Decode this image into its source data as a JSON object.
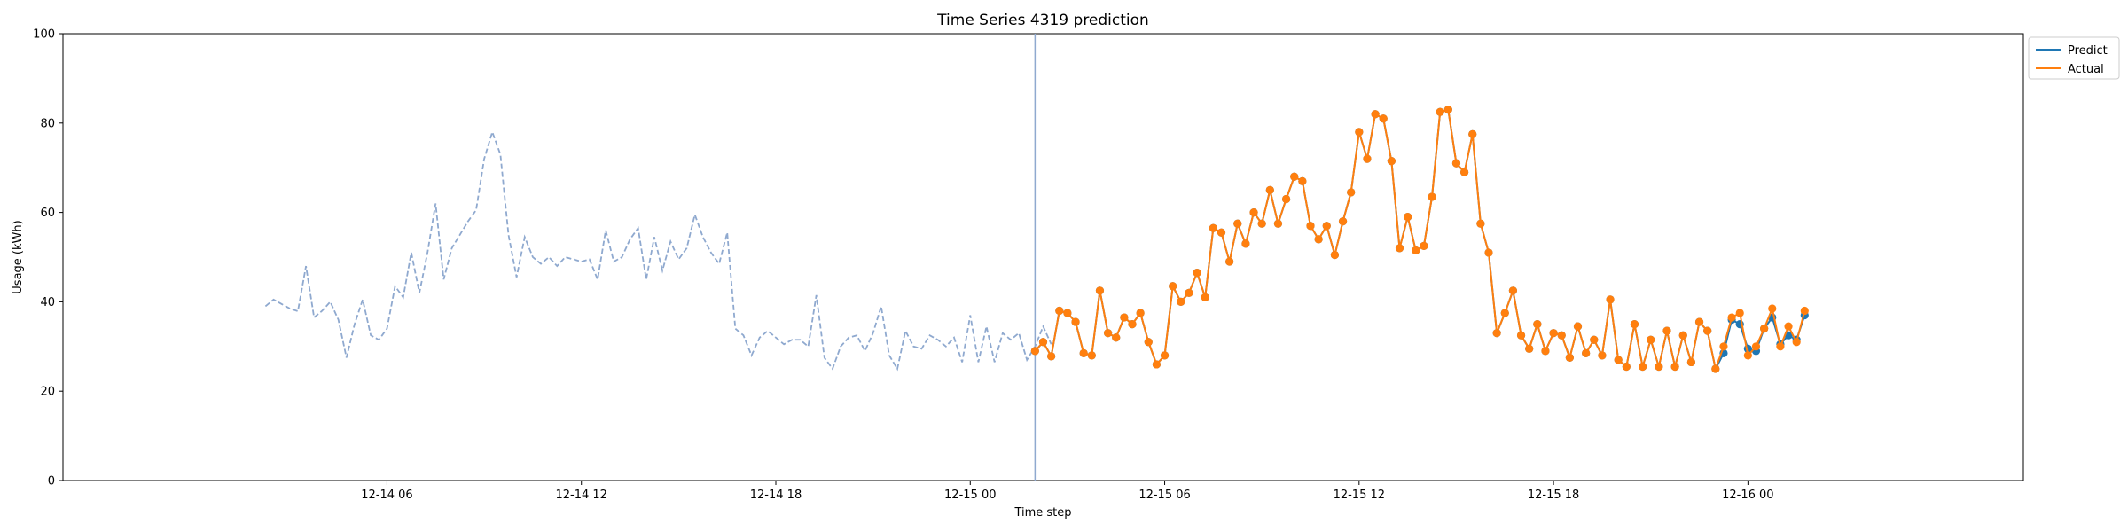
{
  "chart_data": {
    "type": "line",
    "title": "Time Series 4319 prediction",
    "xlabel": "Time step",
    "ylabel": "Usage (kWh)",
    "ylim": [
      0,
      100
    ],
    "yticks": [
      0,
      20,
      40,
      60,
      80,
      100
    ],
    "x_unit": "hours",
    "xlim": [
      -4,
      56.5
    ],
    "xticks": [
      {
        "x": 6,
        "label": "12-14 06"
      },
      {
        "x": 12,
        "label": "12-14 12"
      },
      {
        "x": 18,
        "label": "12-14 18"
      },
      {
        "x": 24,
        "label": "12-15 00"
      },
      {
        "x": 30,
        "label": "12-15 06"
      },
      {
        "x": 36,
        "label": "12-15 12"
      },
      {
        "x": 42,
        "label": "12-15 18"
      },
      {
        "x": 48,
        "label": "12-16 00"
      }
    ],
    "forecast_start": 26,
    "legend": {
      "placement": "outside-right-top"
    },
    "colors": {
      "history": "#8fa9cf",
      "predict": "#1f77b4",
      "actual": "#ff7f0e",
      "forecast_line": "#8fa9cf"
    },
    "history": {
      "x_start": 2.25,
      "x_step": 0.25,
      "values": [
        39.0,
        40.5,
        39.5,
        38.5,
        37.9,
        48.0,
        36.5,
        38.0,
        40.0,
        36.0,
        27.5,
        35.0,
        40.5,
        32.5,
        31.5,
        34.0,
        43.5,
        41.0,
        51.0,
        42.0,
        51.0,
        62.0,
        45.0,
        52.0,
        55.0,
        58.0,
        60.5,
        72.0,
        78.0,
        73.0,
        55.0,
        45.5,
        54.5,
        50.0,
        48.5,
        50.0,
        48.0,
        50.0,
        49.5,
        49.0,
        49.5,
        45.0,
        56.0,
        49.0,
        50.0,
        54.0,
        56.5,
        45.0,
        54.5,
        47.0,
        53.5,
        49.5,
        52.0,
        59.5,
        54.5,
        51.0,
        48.5,
        55.5,
        34.0,
        32.5,
        28.0,
        32.0,
        33.5,
        32.0,
        30.5,
        31.5,
        31.5,
        30.0,
        41.5,
        27.5,
        25.0,
        30.0,
        32.0,
        32.5,
        29.0,
        33.0,
        39.0,
        28.0,
        25.0,
        33.5,
        30.0,
        29.5,
        32.5,
        31.5,
        30.0,
        32.0,
        26.5,
        37.0,
        26.5,
        34.5,
        26.5,
        33.0,
        31.5,
        33.0,
        27.0,
        30.0,
        34.5,
        30.5
      ]
    },
    "series": [
      {
        "name": "Predict",
        "x_start": 26,
        "x_step": 0.25,
        "values": [
          29.0,
          31.0,
          27.8,
          38.0,
          37.5,
          35.5,
          28.5,
          28.0,
          42.5,
          33.0,
          32.0,
          36.5,
          35.0,
          37.5,
          31.0,
          26.0,
          28.0,
          43.5,
          40.0,
          42.0,
          46.5,
          41.0,
          56.5,
          55.5,
          49.0,
          57.5,
          53.0,
          60.0,
          57.5,
          65.0,
          57.5,
          63.0,
          68.0,
          67.0,
          57.0,
          54.0,
          57.0,
          50.5,
          58.0,
          64.5,
          78.0,
          72.0,
          82.0,
          81.0,
          71.5,
          52.0,
          59.0,
          51.5,
          52.5,
          63.5,
          82.5,
          83.0,
          71.0,
          69.0,
          77.5,
          57.5,
          51.0,
          33.0,
          37.5,
          42.5,
          32.5,
          29.5,
          35.0,
          29.0,
          33.0,
          32.5,
          27.5,
          34.5,
          28.5,
          31.5,
          28.0,
          40.5,
          27.0,
          25.5,
          35.0,
          25.5,
          31.5,
          25.5,
          33.5,
          25.5,
          32.5,
          26.5,
          35.5,
          33.5,
          25.0,
          28.5,
          36.0,
          35.0,
          29.5,
          29.0,
          34.0,
          36.5,
          30.5,
          32.5,
          31.5,
          37.0
        ]
      },
      {
        "name": "Actual",
        "x_start": 26,
        "x_step": 0.25,
        "values": [
          29.0,
          31.0,
          27.8,
          38.0,
          37.5,
          35.5,
          28.5,
          28.0,
          42.5,
          33.0,
          32.0,
          36.5,
          35.0,
          37.5,
          31.0,
          26.0,
          28.0,
          43.5,
          40.0,
          42.0,
          46.5,
          41.0,
          56.5,
          55.5,
          49.0,
          57.5,
          53.0,
          60.0,
          57.5,
          65.0,
          57.5,
          63.0,
          68.0,
          67.0,
          57.0,
          54.0,
          57.0,
          50.5,
          58.0,
          64.5,
          78.0,
          72.0,
          82.0,
          81.0,
          71.5,
          52.0,
          59.0,
          51.5,
          52.5,
          63.5,
          82.5,
          83.0,
          71.0,
          69.0,
          77.5,
          57.5,
          51.0,
          33.0,
          37.5,
          42.5,
          32.5,
          29.5,
          35.0,
          29.0,
          33.0,
          32.5,
          27.5,
          34.5,
          28.5,
          31.5,
          28.0,
          40.5,
          27.0,
          25.5,
          35.0,
          25.5,
          31.5,
          25.5,
          33.5,
          25.5,
          32.5,
          26.5,
          35.5,
          33.5,
          25.0,
          30.0,
          36.5,
          37.5,
          28.0,
          30.0,
          34.0,
          38.5,
          30.0,
          34.5,
          31.0,
          38.0
        ]
      }
    ]
  }
}
